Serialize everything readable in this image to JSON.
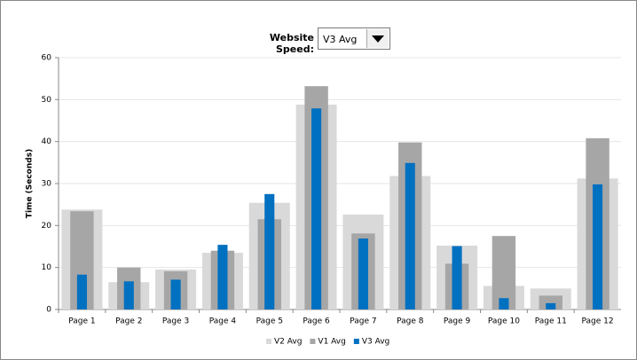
{
  "selector": {
    "label": "Website Speed:",
    "value": "V3 Avg"
  },
  "chart_data": {
    "type": "bar",
    "y_label": "Time (Seconds)",
    "categories": [
      "Page 1",
      "Page 2",
      "Page 3",
      "Page 4",
      "Page 5",
      "Page 6",
      "Page 7",
      "Page 8",
      "Page 9",
      "Page 10",
      "Page 11",
      "Page 12"
    ],
    "series": [
      {
        "name": "V2 Avg",
        "color": "#d9d9d9",
        "values": [
          23.8,
          6.5,
          9.5,
          13.5,
          25.4,
          48.8,
          22.6,
          31.8,
          15.2,
          5.6,
          5.0,
          31.2
        ]
      },
      {
        "name": "V1 Avg",
        "color": "#a6a6a6",
        "values": [
          23.4,
          10,
          9.1,
          14,
          21.5,
          53.2,
          18.1,
          39.8,
          10.9,
          17.5,
          3.3,
          40.8
        ]
      },
      {
        "name": "V3 Avg",
        "color": "#0070c0",
        "values": [
          8.3,
          6.7,
          7.1,
          15.4,
          27.5,
          47.9,
          16.9,
          34.9,
          15.1,
          2.7,
          1.5,
          29.8
        ]
      }
    ],
    "ylim": [
      0,
      60
    ],
    "yticks": [
      0,
      10,
      20,
      30,
      40,
      50,
      60
    ],
    "grid": true,
    "legend": "bottom"
  }
}
